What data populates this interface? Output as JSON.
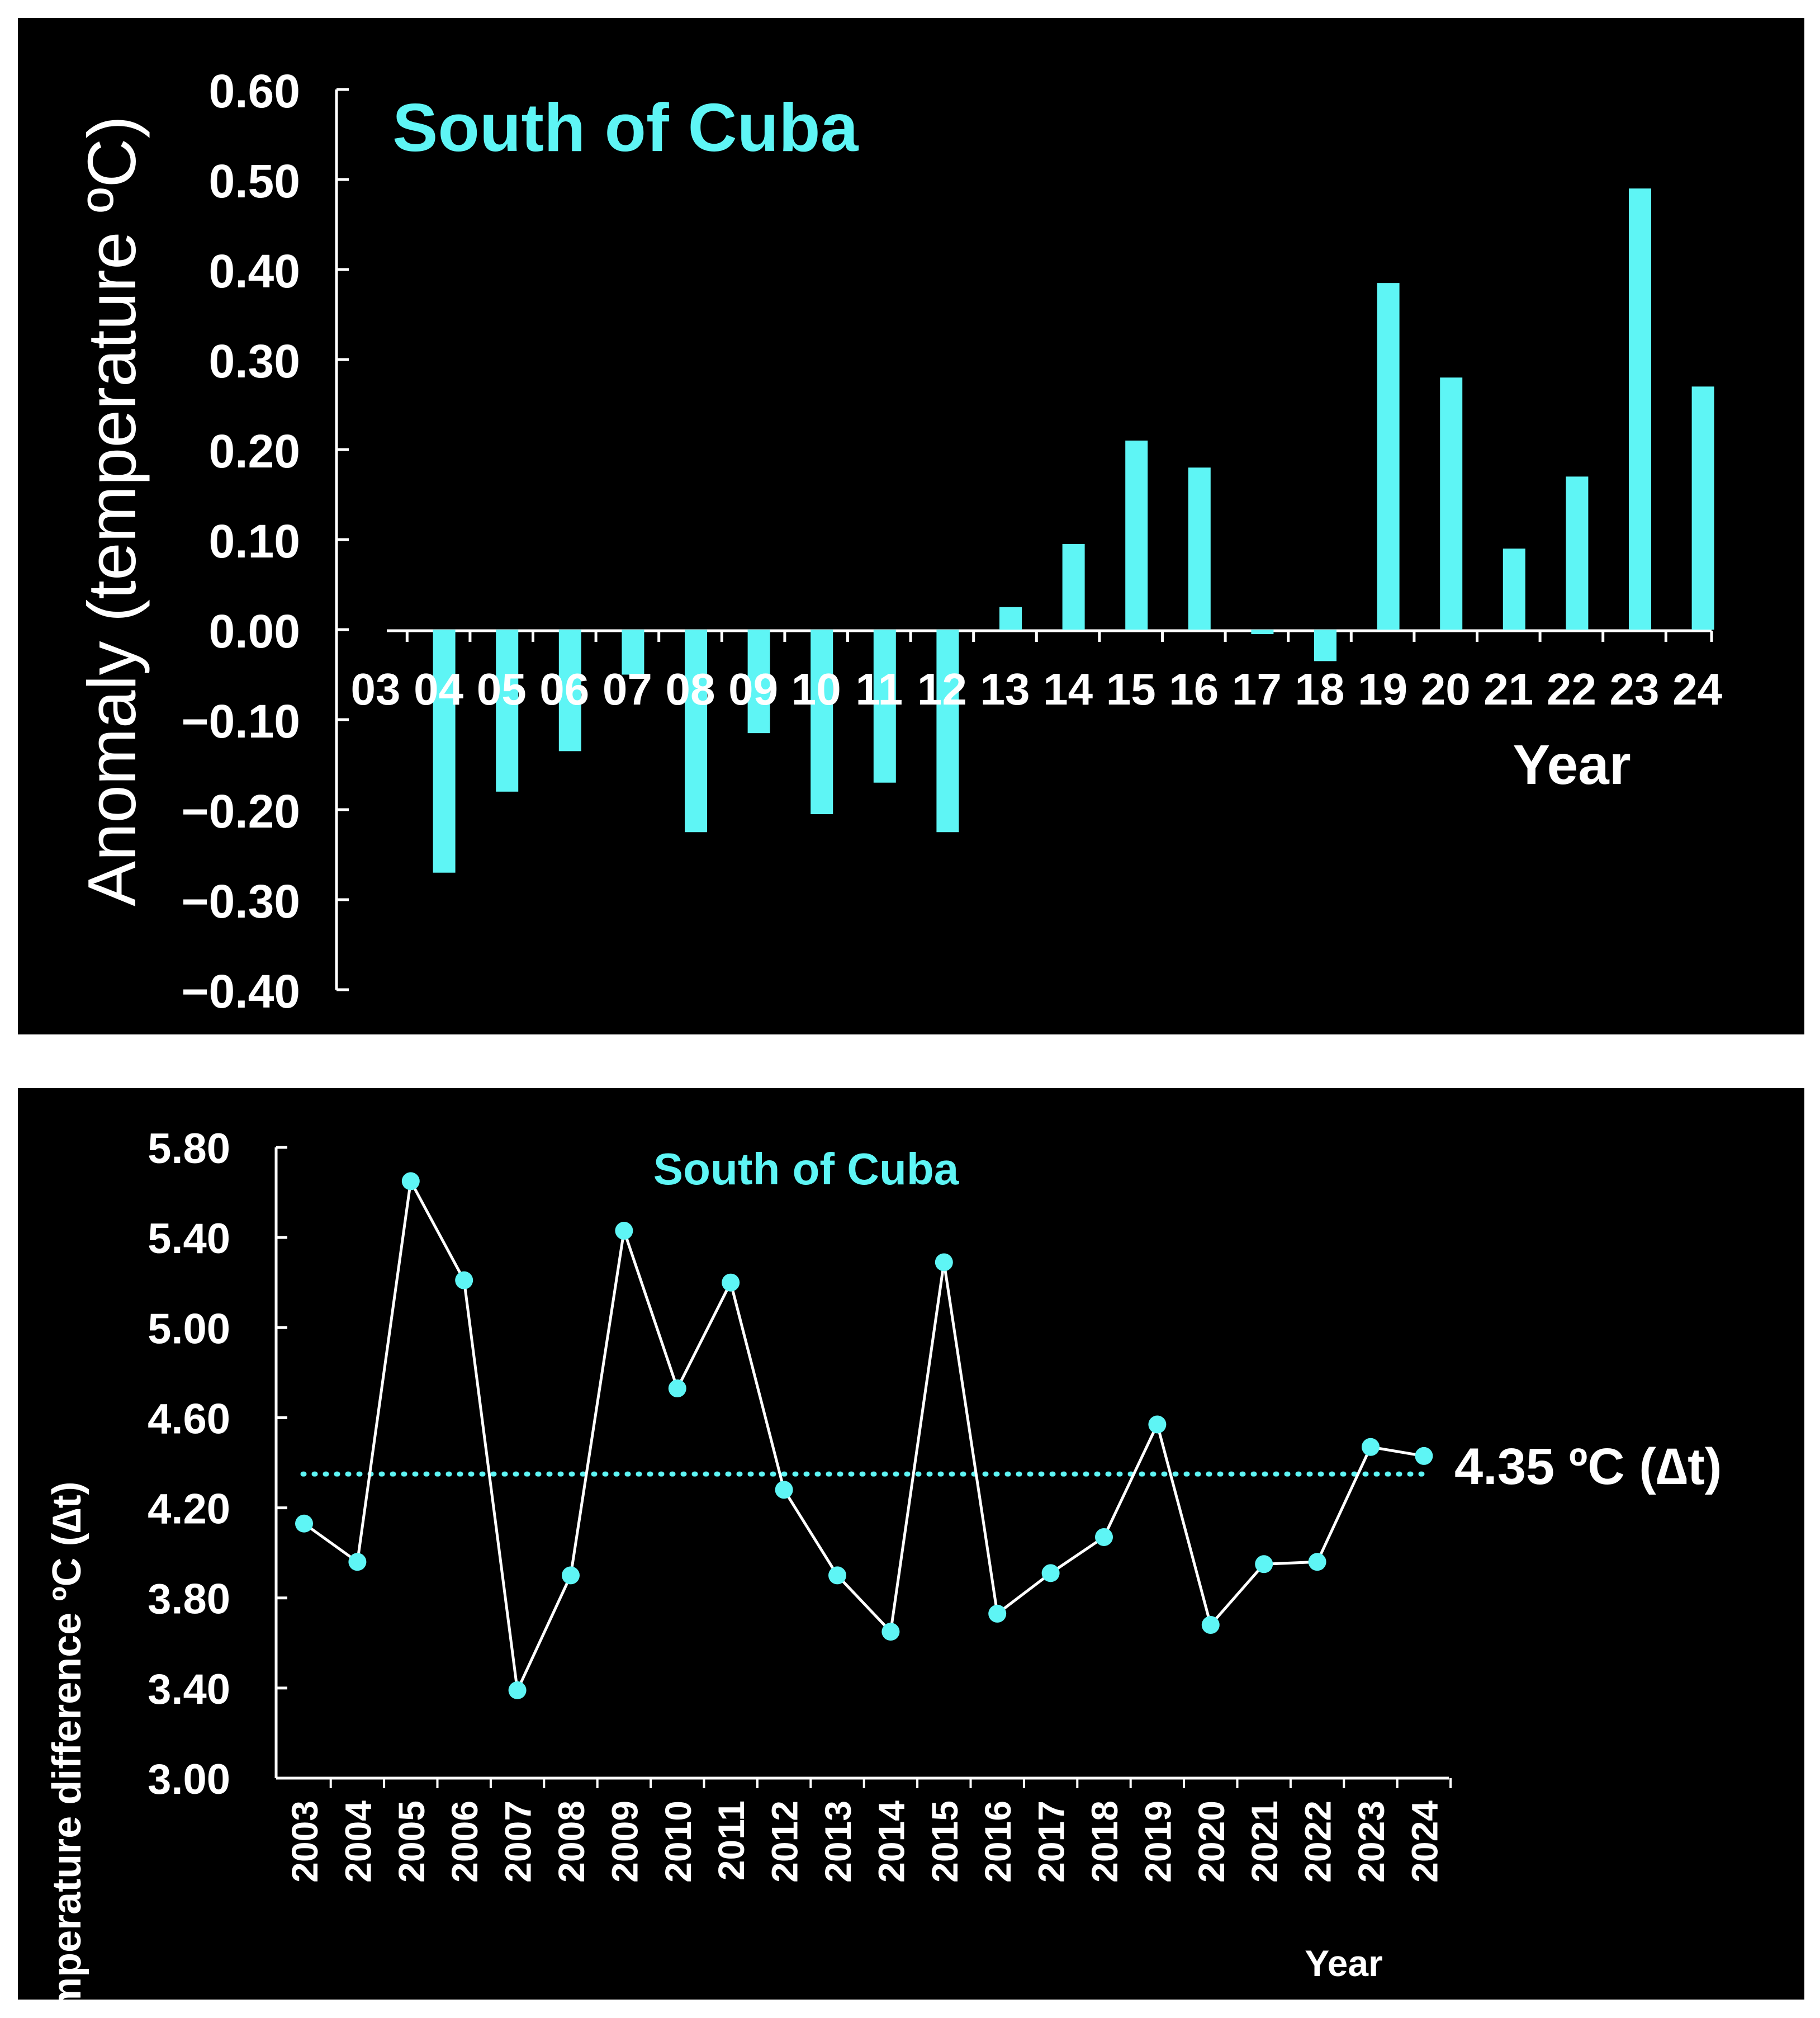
{
  "chart_data": [
    {
      "type": "bar",
      "title": "South of Cuba",
      "xlabel": "Year",
      "ylabel": "Anomaly (temperature ºC)",
      "ylim": [
        -0.4,
        0.6
      ],
      "yticks": [
        "0.60",
        "0.50",
        "0.40",
        "0.30",
        "0.20",
        "0.10",
        "0.00",
        "−0.10",
        "−0.20",
        "−0.30",
        "−0.40"
      ],
      "categories": [
        "03",
        "04",
        "05",
        "06",
        "07",
        "08",
        "09",
        "10",
        "11",
        "12",
        "13",
        "14",
        "15",
        "16",
        "17",
        "18",
        "19",
        "20",
        "21",
        "22",
        "23",
        "24"
      ],
      "values": [
        0.0,
        -0.27,
        -0.18,
        -0.135,
        -0.05,
        -0.225,
        -0.115,
        -0.205,
        -0.17,
        -0.225,
        0.025,
        0.095,
        0.21,
        0.18,
        -0.005,
        -0.035,
        0.385,
        0.28,
        0.09,
        0.17,
        0.49,
        0.27
      ],
      "bar_color": "#5ef5f5",
      "grid": false
    },
    {
      "type": "line",
      "title": "South of Cuba",
      "xlabel": "Year",
      "ylabel": "Temperature difference ºC (∆t)",
      "ylim": [
        3.0,
        5.8
      ],
      "yticks": [
        "5.80",
        "5.40",
        "5.00",
        "4.60",
        "4.20",
        "3.80",
        "3.40",
        "3.00"
      ],
      "categories": [
        "2003",
        "2004",
        "2005",
        "2006",
        "2007",
        "2008",
        "2009",
        "2010",
        "2011",
        "2012",
        "2013",
        "2014",
        "2015",
        "2016",
        "2017",
        "2018",
        "2019",
        "2020",
        "2021",
        "2022",
        "2023",
        "2024"
      ],
      "values": [
        4.13,
        3.96,
        5.65,
        5.21,
        3.39,
        3.9,
        5.43,
        4.73,
        5.2,
        4.28,
        3.9,
        3.65,
        5.29,
        3.73,
        3.91,
        4.07,
        4.57,
        3.68,
        3.95,
        3.96,
        4.47,
        4.43
      ],
      "reference_line": {
        "value": 4.35,
        "label": "4.35 ºC (∆t)"
      },
      "line_color": "#ffffff",
      "marker_color": "#5ef5f5",
      "grid": false
    }
  ]
}
